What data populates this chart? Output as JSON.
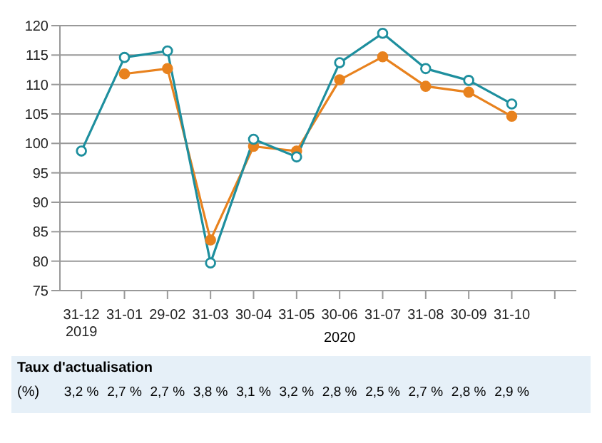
{
  "chart_data": {
    "type": "line",
    "categories": [
      "31-12\n2019",
      "31-01",
      "29-02",
      "31-03",
      "30-04",
      "31-05",
      "30-06",
      "31-07",
      "31-08",
      "30-09",
      "31-10",
      null
    ],
    "series": [
      {
        "color": "#1e8f9e",
        "values": [
          98.7,
          114.6,
          115.7,
          79.7,
          100.7,
          97.7,
          113.7,
          118.7,
          112.7,
          110.7,
          106.7,
          null
        ]
      },
      {
        "color": "#e8821e",
        "values": [
          null,
          111.8,
          112.7,
          83.6,
          99.5,
          98.7,
          110.8,
          114.7,
          109.7,
          108.7,
          104.6,
          null
        ]
      }
    ],
    "ylim": [
      75,
      120
    ],
    "yticks": [
      75,
      80,
      85,
      90,
      95,
      100,
      105,
      110,
      115,
      120
    ],
    "grid": "y",
    "marker": "circle",
    "line_style": "solid",
    "annotations": [
      "2020",
      "Taux d'actualisation",
      "(%)",
      "3,2 %",
      "2,7 %",
      "2,7 %",
      "3,8 %",
      "3,1 %",
      "3,2 %",
      "2,8 %",
      "2,5 %",
      "2,7 %",
      "2,8 %",
      "2,9 %"
    ]
  }
}
